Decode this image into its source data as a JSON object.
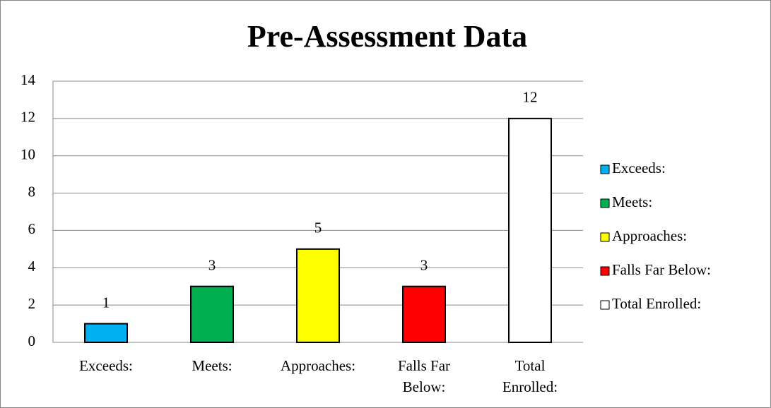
{
  "chart_data": {
    "type": "bar",
    "title": "Pre-Assessment Data",
    "categories": [
      "Exceeds:",
      "Meets:",
      "Approaches:",
      "Falls Far Below:",
      "Total Enrolled:"
    ],
    "values": [
      1,
      3,
      5,
      3,
      12
    ],
    "colors": [
      "#00b0f0",
      "#00b050",
      "#ffff00",
      "#ff0000",
      "#ffffff"
    ],
    "ylim": [
      0,
      14
    ],
    "yticks": [
      0,
      2,
      4,
      6,
      8,
      10,
      12,
      14
    ],
    "grid": true,
    "legend": "right"
  }
}
